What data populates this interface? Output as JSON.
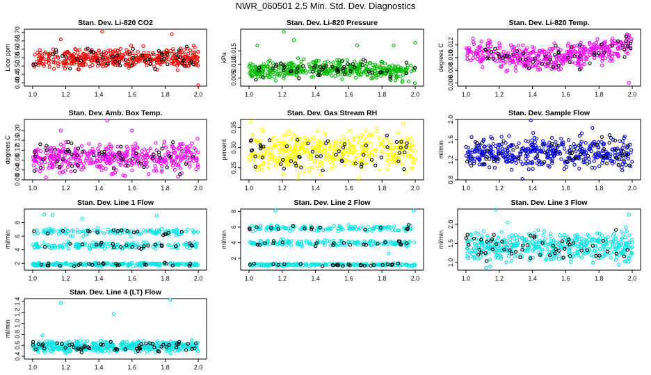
{
  "title": "NWR_060501  2.5 Min. Std. Dev. Diagnostics",
  "chart_data": [
    {
      "type": "scatter",
      "title": "Stan. Dev. Li-820 CO2",
      "ylabel": "Licor ppm",
      "xlim": [
        0.95,
        2.05
      ],
      "ylim": [
        0.38,
        0.72
      ],
      "xticks": [
        "1.0",
        "1.2",
        "1.4",
        "1.6",
        "1.8",
        "2.0"
      ],
      "yticks": [
        "0.40",
        "0.45",
        "0.50",
        "0.55",
        "0.60",
        "0.65",
        "0.70"
      ],
      "color": "#ff0000",
      "n_points": 420,
      "seed": 11,
      "bands": [
        {
          "center": 0.545,
          "spread": 0.085,
          "weight": 1.0
        }
      ],
      "trend": [
        0,
        0
      ],
      "outliers": [
        [
          1.42,
          0.705
        ],
        [
          2.0,
          0.385
        ],
        [
          1.17,
          0.66
        ],
        [
          1.84,
          0.69
        ]
      ]
    },
    {
      "type": "scatter",
      "title": "Stan. Dev. Li-820 Pressure",
      "ylabel": "kPa",
      "xlim": [
        0.95,
        2.05
      ],
      "ylim": [
        0.002,
        0.023
      ],
      "xticks": [
        "1.0",
        "1.2",
        "1.4",
        "1.6",
        "1.8",
        "2.0"
      ],
      "yticks": [
        "0.005",
        "0.010",
        "0.015"
      ],
      "color": "#00bb00",
      "n_points": 420,
      "seed": 23,
      "bands": [
        {
          "center": 0.0072,
          "spread": 0.0045,
          "weight": 1.0
        }
      ],
      "trend": [
        0.0018,
        -0.0008
      ],
      "outliers": [
        [
          1.21,
          0.022
        ],
        [
          1.27,
          0.019
        ],
        [
          1.65,
          0.017
        ],
        [
          1.87,
          0.017
        ],
        [
          2.0,
          0.018
        ],
        [
          1.05,
          0.017
        ]
      ]
    },
    {
      "type": "scatter",
      "title": "Stan. Dev. Li-820 Temp.",
      "ylabel": "degrees C",
      "xlim": [
        0.95,
        2.05
      ],
      "ylim": [
        0.0055,
        0.0145
      ],
      "xticks": [
        "1.0",
        "1.2",
        "1.4",
        "1.6",
        "1.8",
        "2.0"
      ],
      "yticks": [
        "0.006",
        "0.008",
        "0.010",
        "0.012"
      ],
      "color": "#ff00ff",
      "n_points": 420,
      "seed": 37,
      "bands": [
        {
          "center": 0.0115,
          "spread": 0.0028,
          "weight": 1.0
        }
      ],
      "trend": [
        -0.002,
        0.001
      ],
      "outliers": [
        [
          1.98,
          0.006
        ],
        [
          1.3,
          0.0079
        ],
        [
          1.1,
          0.0085
        ]
      ]
    },
    {
      "type": "scatter",
      "title": "Stan. Dev. Amb. Box Temp.",
      "ylabel": "degrees C",
      "xlim": [
        0.95,
        2.05
      ],
      "ylim": [
        0.0,
        0.245
      ],
      "xticks": [
        "1.0",
        "1.2",
        "1.4",
        "1.6",
        "1.8",
        "2.0"
      ],
      "yticks": [
        "0.00",
        "0.04",
        "0.08",
        "0.12",
        "0.16",
        "0.20"
      ],
      "color": "#ff00ff",
      "n_points": 420,
      "seed": 41,
      "bands": [
        {
          "center": 0.09,
          "spread": 0.085,
          "weight": 1.0
        }
      ],
      "trend": [
        0,
        0
      ],
      "outliers": [
        [
          1.45,
          0.24
        ],
        [
          1.17,
          0.2
        ],
        [
          1.6,
          0.2
        ],
        [
          1.08,
          0.01
        ]
      ]
    },
    {
      "type": "scatter",
      "title": "Stan. Dev. Gas Stream RH",
      "ylabel": "percent",
      "xlim": [
        0.95,
        2.05
      ],
      "ylim": [
        0.22,
        0.37
      ],
      "xticks": [
        "1.0",
        "1.2",
        "1.4",
        "1.6",
        "1.8",
        "2.0"
      ],
      "yticks": [
        "0.25",
        "0.30",
        "0.35"
      ],
      "color": "#ffff00",
      "n_points": 420,
      "seed": 53,
      "bands": [
        {
          "center": 0.29,
          "spread": 0.07,
          "weight": 1.0
        }
      ],
      "trend": [
        0,
        0
      ],
      "outliers": [
        [
          1.01,
          0.365
        ],
        [
          1.93,
          0.36
        ],
        [
          1.3,
          0.225
        ]
      ]
    },
    {
      "type": "scatter",
      "title": "Stan. Dev. Sample Flow",
      "ylabel": "ml/min",
      "xlim": [
        0.95,
        2.05
      ],
      "ylim": [
        0.8,
        2.0
      ],
      "xticks": [
        "1.0",
        "1.2",
        "1.4",
        "1.6",
        "1.8",
        "2.0"
      ],
      "yticks": [
        "0.8",
        "1.2",
        "1.6",
        "2.0"
      ],
      "color": "#0000dd",
      "n_points": 420,
      "seed": 67,
      "bands": [
        {
          "center": 1.35,
          "spread": 0.42,
          "weight": 1.0
        }
      ],
      "trend": [
        0,
        0
      ],
      "outliers": [
        [
          1.39,
          1.98
        ],
        [
          1.34,
          0.82
        ],
        [
          1.76,
          1.83
        ]
      ]
    },
    {
      "type": "scatter",
      "title": "Stan. Dev. Line 1 Flow",
      "ylabel": "ml/min",
      "xlim": [
        0.95,
        2.05
      ],
      "ylim": [
        1.0,
        10.0
      ],
      "xticks": [
        "1.0",
        "1.2",
        "1.4",
        "1.6",
        "1.8",
        "2.0"
      ],
      "yticks": [
        "2",
        "4",
        "6",
        "8"
      ],
      "color": "#00e5e5",
      "n_points": 480,
      "seed": 71,
      "bands": [
        {
          "center": 1.85,
          "spread": 0.35,
          "weight": 0.45
        },
        {
          "center": 4.6,
          "spread": 0.7,
          "weight": 0.3
        },
        {
          "center": 6.6,
          "spread": 0.8,
          "weight": 0.25
        }
      ],
      "trend": [
        0,
        0
      ],
      "outliers": [
        [
          1.07,
          9.2
        ],
        [
          1.12,
          9.1
        ],
        [
          1.75,
          9.0
        ],
        [
          1.3,
          8.6
        ]
      ]
    },
    {
      "type": "scatter",
      "title": "Stan. Dev. Line 2 Flow",
      "ylabel": "ml/min",
      "xlim": [
        0.95,
        2.05
      ],
      "ylim": [
        0.5,
        8.3
      ],
      "xticks": [
        "1.0",
        "1.2",
        "1.4",
        "1.6",
        "1.8",
        "2.0"
      ],
      "yticks": [
        "2",
        "4",
        "6",
        "8"
      ],
      "color": "#00e5e5",
      "n_points": 480,
      "seed": 83,
      "bands": [
        {
          "center": 1.2,
          "spread": 0.25,
          "weight": 0.4
        },
        {
          "center": 3.95,
          "spread": 0.55,
          "weight": 0.3
        },
        {
          "center": 5.85,
          "spread": 0.5,
          "weight": 0.3
        }
      ],
      "trend": [
        0,
        0
      ],
      "outliers": [
        [
          1.16,
          8.1
        ],
        [
          1.99,
          8.1
        ],
        [
          1.84,
          2.6
        ]
      ]
    },
    {
      "type": "scatter",
      "title": "Stan. Dev. Line 3 Flow",
      "ylabel": "ml/min",
      "xlim": [
        0.95,
        2.05
      ],
      "ylim": [
        0.8,
        2.4
      ],
      "xticks": [
        "1.0",
        "1.2",
        "1.4",
        "1.6",
        "1.8",
        "2.0"
      ],
      "yticks": [
        "1.0",
        "1.5",
        "2.0"
      ],
      "color": "#00e5e5",
      "n_points": 420,
      "seed": 97,
      "bands": [
        {
          "center": 1.4,
          "spread": 0.55,
          "weight": 1.0
        }
      ],
      "trend": [
        0,
        0
      ],
      "outliers": [
        [
          1.18,
          2.38
        ],
        [
          1.25,
          2.05
        ],
        [
          1.98,
          2.25
        ]
      ]
    },
    {
      "type": "scatter",
      "title": "Stan. Dev. Line 4 (LT) Flow",
      "ylabel": "ml/min",
      "xlim": [
        0.95,
        2.05
      ],
      "ylim": [
        0.35,
        1.45
      ],
      "xticks": [
        "1.0",
        "1.2",
        "1.4",
        "1.6",
        "1.8",
        "2.0"
      ],
      "yticks": [
        "0.4",
        "0.6",
        "0.8",
        "1.0",
        "1.2",
        "1.4"
      ],
      "color": "#00e5e5",
      "n_points": 420,
      "seed": 101,
      "bands": [
        {
          "center": 0.58,
          "spread": 0.14,
          "weight": 1.0
        }
      ],
      "trend": [
        0,
        0
      ],
      "outliers": [
        [
          1.17,
          1.37
        ],
        [
          1.83,
          1.43
        ],
        [
          1.49,
          1.17
        ],
        [
          1.06,
          0.78
        ]
      ]
    }
  ]
}
